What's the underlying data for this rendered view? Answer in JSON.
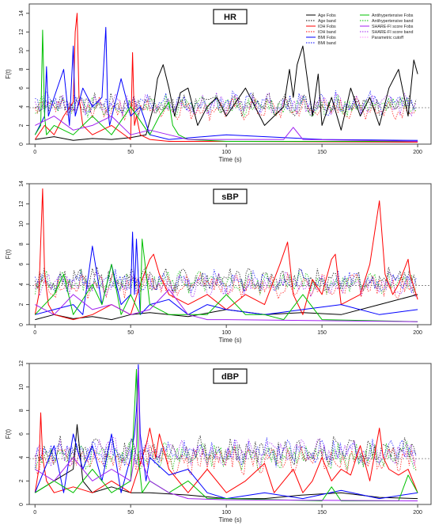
{
  "chart_data": [
    {
      "type": "line",
      "title": "HR",
      "xlabel": "Time (s)",
      "ylabel": "F(t)",
      "xlim": [
        0,
        200
      ],
      "ylim": [
        0,
        15
      ],
      "xticks": [
        0,
        50,
        100,
        150,
        200
      ],
      "yticks": [
        0,
        2,
        4,
        6,
        8,
        10,
        12,
        14
      ],
      "cutoff": 3.9,
      "legend_position": "top-right",
      "legend": [
        {
          "name": "Age Fobs",
          "color": "#000000",
          "style": "solid"
        },
        {
          "name": "Age band",
          "color": "#000000",
          "style": "dotted"
        },
        {
          "name": "IOH Fobs",
          "color": "#ff0000",
          "style": "solid"
        },
        {
          "name": "IOH band",
          "color": "#ff0000",
          "style": "dotted"
        },
        {
          "name": "BMI Fobs",
          "color": "#0000ff",
          "style": "solid"
        },
        {
          "name": "BMI band",
          "color": "#0000ff",
          "style": "dotted"
        },
        {
          "name": "Antihypertensive Fobs",
          "color": "#00c000",
          "style": "solid"
        },
        {
          "name": "Antihypertensive band",
          "color": "#00c000",
          "style": "dotted"
        },
        {
          "name": "SHARE-FI score Fobs",
          "color": "#a020f0",
          "style": "solid"
        },
        {
          "name": "SHARE-FI score band",
          "color": "#a020f0",
          "style": "dotted"
        },
        {
          "name": "Parametric cutoff",
          "color": "#ff88ff",
          "style": "dotted"
        }
      ],
      "series": [
        {
          "name": "Age Fobs",
          "color": "#000000",
          "style": "solid",
          "x": [
            0,
            10,
            20,
            30,
            40,
            50,
            58,
            62,
            64,
            67,
            70,
            73,
            76,
            80,
            85,
            90,
            95,
            100,
            110,
            120,
            125,
            130,
            133,
            135,
            137,
            140,
            145,
            148,
            150,
            155,
            160,
            165,
            170,
            175,
            180,
            185,
            190,
            195,
            198,
            200
          ],
          "y": [
            0.5,
            0.8,
            0.4,
            0.6,
            0.5,
            0.7,
            1,
            4,
            7,
            8.5,
            6,
            3,
            5.5,
            6,
            2,
            4,
            5,
            3,
            6,
            2,
            3,
            4,
            8,
            5,
            8.5,
            10.5,
            3,
            7.5,
            2,
            5,
            1.5,
            6,
            3,
            5,
            2,
            6,
            8,
            3,
            9,
            7.5
          ]
        },
        {
          "name": "IOH Fobs",
          "color": "#ff0000",
          "style": "solid",
          "x": [
            0,
            5,
            10,
            15,
            20,
            21,
            22,
            23,
            25,
            30,
            40,
            50,
            51,
            52,
            53,
            55,
            60,
            70,
            100,
            200
          ],
          "y": [
            0.5,
            2,
            1,
            3,
            4.5,
            12,
            14,
            5,
            2,
            1,
            2,
            0.5,
            9.8,
            2,
            3,
            1,
            0.5,
            0.3,
            0.3,
            0.2
          ]
        },
        {
          "name": "BMI Fobs",
          "color": "#0000ff",
          "style": "solid",
          "x": [
            0,
            5,
            6,
            7,
            10,
            15,
            18,
            20,
            21,
            25,
            30,
            35,
            37,
            38,
            39,
            45,
            50,
            55,
            60,
            70,
            100,
            150,
            200
          ],
          "y": [
            1,
            3,
            8.3,
            3,
            5,
            8,
            2,
            10.5,
            3,
            6,
            4,
            5,
            12.5,
            4,
            2,
            7,
            3,
            4,
            1,
            0.5,
            1,
            0.5,
            0.4
          ]
        },
        {
          "name": "Antihypertensive Fobs",
          "color": "#00c000",
          "style": "solid",
          "x": [
            0,
            3,
            4,
            5,
            6,
            10,
            20,
            30,
            40,
            50,
            60,
            65,
            70,
            72,
            75,
            80,
            100,
            200
          ],
          "y": [
            1,
            2,
            12.2,
            3,
            1,
            2,
            1,
            3,
            1,
            4,
            1,
            3,
            4.5,
            2,
            1,
            0.5,
            0.3,
            0.3
          ]
        },
        {
          "name": "SHARE-FI score Fobs",
          "color": "#a020f0",
          "style": "solid",
          "x": [
            0,
            10,
            20,
            30,
            40,
            50,
            60,
            70,
            80,
            100,
            130,
            135,
            140,
            200
          ],
          "y": [
            2,
            3,
            1.5,
            2,
            3,
            1,
            1.5,
            1,
            0.5,
            0.5,
            0.5,
            1.8,
            0.5,
            0.3
          ]
        }
      ],
      "bands": [
        {
          "name": "Age band",
          "color": "#000000",
          "level": 4.3
        },
        {
          "name": "IOH band",
          "color": "#ff0000",
          "level": 3.8
        },
        {
          "name": "BMI band",
          "color": "#0000ff",
          "level": 4.4
        },
        {
          "name": "Antihypertensive band",
          "color": "#00c000",
          "level": 4.1
        },
        {
          "name": "SHARE-FI score band",
          "color": "#a020f0",
          "level": 4.2
        }
      ]
    },
    {
      "type": "line",
      "title": "sBP",
      "xlabel": "Time (s)",
      "ylabel": "F(t)",
      "xlim": [
        0,
        200
      ],
      "ylim": [
        0,
        14
      ],
      "xticks": [
        0,
        50,
        100,
        150,
        200
      ],
      "yticks": [
        0,
        2,
        4,
        6,
        8,
        10,
        12,
        14
      ],
      "cutoff": 3.9,
      "series": [
        {
          "name": "Age Fobs",
          "color": "#000000",
          "style": "solid",
          "x": [
            0,
            10,
            20,
            30,
            40,
            50,
            60,
            80,
            100,
            120,
            140,
            160,
            180,
            200
          ],
          "y": [
            0.5,
            1,
            0.6,
            0.8,
            0.5,
            1,
            1.2,
            0.8,
            1.5,
            1,
            1.2,
            1,
            2,
            3
          ]
        },
        {
          "name": "IOH Fobs",
          "color": "#ff0000",
          "style": "solid",
          "x": [
            0,
            2,
            4,
            5,
            7,
            10,
            20,
            30,
            40,
            50,
            55,
            60,
            62,
            65,
            70,
            80,
            90,
            100,
            110,
            120,
            128,
            132,
            135,
            140,
            145,
            150,
            155,
            157,
            160,
            170,
            175,
            180,
            183,
            187,
            190,
            195,
            196,
            200
          ],
          "y": [
            1,
            3,
            13.5,
            5,
            2,
            1,
            0.5,
            1,
            2,
            1,
            4,
            6.5,
            7,
            5,
            3,
            2,
            3,
            1.5,
            3,
            2,
            6,
            8.2,
            3,
            1,
            4.5,
            3,
            6.5,
            7,
            2,
            3,
            6,
            12.3,
            5,
            3,
            4,
            6.5,
            5,
            2.5
          ]
        },
        {
          "name": "BMI Fobs",
          "color": "#0000ff",
          "style": "solid",
          "x": [
            0,
            10,
            20,
            25,
            28,
            30,
            35,
            40,
            45,
            50,
            51,
            52,
            53,
            55,
            60,
            70,
            80,
            90,
            100,
            120,
            140,
            160,
            180,
            200
          ],
          "y": [
            1,
            1.5,
            2,
            1,
            5,
            7.8,
            2,
            6,
            2,
            3,
            9.2,
            3,
            8.5,
            1,
            2,
            2.5,
            1,
            2,
            1.5,
            1,
            1.5,
            2,
            1,
            1.5
          ]
        },
        {
          "name": "Antihypertensive Fobs",
          "color": "#00c000",
          "style": "solid",
          "x": [
            0,
            10,
            15,
            20,
            30,
            35,
            40,
            45,
            50,
            55,
            56,
            60,
            70,
            90,
            100,
            110,
            120,
            130,
            140,
            150,
            200
          ],
          "y": [
            1,
            3,
            5,
            1,
            4,
            2,
            6,
            1,
            3,
            1,
            8.5,
            2,
            1,
            1,
            3,
            1,
            1,
            0.5,
            3,
            0.5,
            0.3
          ]
        },
        {
          "name": "SHARE-FI score Fobs",
          "color": "#a020f0",
          "style": "solid",
          "x": [
            0,
            10,
            20,
            30,
            40,
            50,
            60,
            70,
            80,
            90,
            100,
            200
          ],
          "y": [
            2,
            1,
            3,
            1.5,
            2,
            1,
            1.5,
            3.5,
            1,
            0.5,
            0.5,
            0.3
          ]
        }
      ],
      "bands": [
        {
          "name": "Age band",
          "color": "#000000",
          "level": 4.5
        },
        {
          "name": "IOH band",
          "color": "#ff0000",
          "level": 3.9
        },
        {
          "name": "BMI band",
          "color": "#0000ff",
          "level": 4.3
        },
        {
          "name": "Antihypertensive band",
          "color": "#00c000",
          "level": 4.2
        },
        {
          "name": "SHARE-FI score band",
          "color": "#a020f0",
          "level": 4.0
        }
      ]
    },
    {
      "type": "line",
      "title": "dBP",
      "xlabel": "Time (s)",
      "ylabel": "F(t)",
      "xlim": [
        0,
        200
      ],
      "ylim": [
        0,
        12
      ],
      "xticks": [
        0,
        50,
        100,
        150,
        200
      ],
      "yticks": [
        0,
        2,
        4,
        6,
        8,
        10,
        12
      ],
      "cutoff": 3.9,
      "series": [
        {
          "name": "Age Fobs",
          "color": "#000000",
          "style": "solid",
          "x": [
            0,
            10,
            20,
            22,
            25,
            30,
            40,
            50,
            60,
            80,
            100,
            120,
            140,
            160,
            180,
            200
          ],
          "y": [
            1,
            2,
            3,
            6.8,
            2,
            1,
            1.5,
            1,
            1,
            0.8,
            0.5,
            0.5,
            0.8,
            1,
            0.6,
            0.5
          ]
        },
        {
          "name": "IOH Fobs",
          "color": "#ff0000",
          "style": "solid",
          "x": [
            0,
            2,
            3,
            4,
            6,
            10,
            20,
            30,
            40,
            50,
            58,
            60,
            63,
            65,
            70,
            80,
            90,
            100,
            110,
            120,
            125,
            130,
            135,
            140,
            145,
            150,
            155,
            160,
            165,
            170,
            175,
            180,
            182,
            185,
            190,
            195,
            200
          ],
          "y": [
            1,
            3,
            7.8,
            4,
            2,
            1,
            1.5,
            1,
            2,
            1,
            5,
            6.5,
            4,
            6,
            3,
            1,
            3,
            1,
            2,
            3.5,
            1,
            2,
            3,
            1,
            2,
            4,
            2,
            3,
            2.5,
            5,
            2,
            6.5,
            4,
            3,
            2.5,
            3,
            1
          ]
        },
        {
          "name": "BMI Fobs",
          "color": "#0000ff",
          "style": "solid",
          "x": [
            0,
            5,
            10,
            15,
            20,
            25,
            30,
            35,
            40,
            45,
            50,
            52,
            53,
            54,
            55,
            58,
            60,
            70,
            80,
            90,
            100,
            120,
            140,
            160,
            180,
            200
          ],
          "y": [
            1,
            3,
            5,
            1,
            6,
            3,
            5,
            2,
            6,
            1,
            4,
            6,
            8,
            11.9,
            6,
            2,
            4,
            2.5,
            3,
            1,
            0.5,
            1,
            0.5,
            1.2,
            0.5,
            1
          ]
        },
        {
          "name": "Antihypertensive Fobs",
          "color": "#00c000",
          "style": "solid",
          "x": [
            0,
            10,
            20,
            30,
            40,
            50,
            52,
            53,
            54,
            56,
            60,
            70,
            80,
            90,
            100,
            150,
            155,
            160,
            190,
            195,
            200
          ],
          "y": [
            1,
            2,
            1,
            3,
            1,
            2,
            8,
            11.5,
            4,
            1,
            2,
            1,
            2,
            0.5,
            0.5,
            0.3,
            1.5,
            0.3,
            0.3,
            2.5,
            1
          ]
        },
        {
          "name": "SHARE-FI score Fobs",
          "color": "#a020f0",
          "style": "solid",
          "x": [
            0,
            10,
            20,
            30,
            40,
            50,
            53,
            54,
            55,
            60,
            70,
            80,
            100,
            200
          ],
          "y": [
            3,
            2,
            4,
            2,
            3,
            2,
            5,
            11.5,
            4,
            2,
            1,
            0.5,
            0.4,
            0.3
          ]
        }
      ],
      "bands": [
        {
          "name": "Age band",
          "color": "#000000",
          "level": 4.6
        },
        {
          "name": "IOH band",
          "color": "#ff0000",
          "level": 3.8
        },
        {
          "name": "BMI band",
          "color": "#0000ff",
          "level": 4.4
        },
        {
          "name": "Antihypertensive band",
          "color": "#00c000",
          "level": 4.1
        },
        {
          "name": "SHARE-FI score band",
          "color": "#a020f0",
          "level": 4.5
        }
      ]
    }
  ]
}
